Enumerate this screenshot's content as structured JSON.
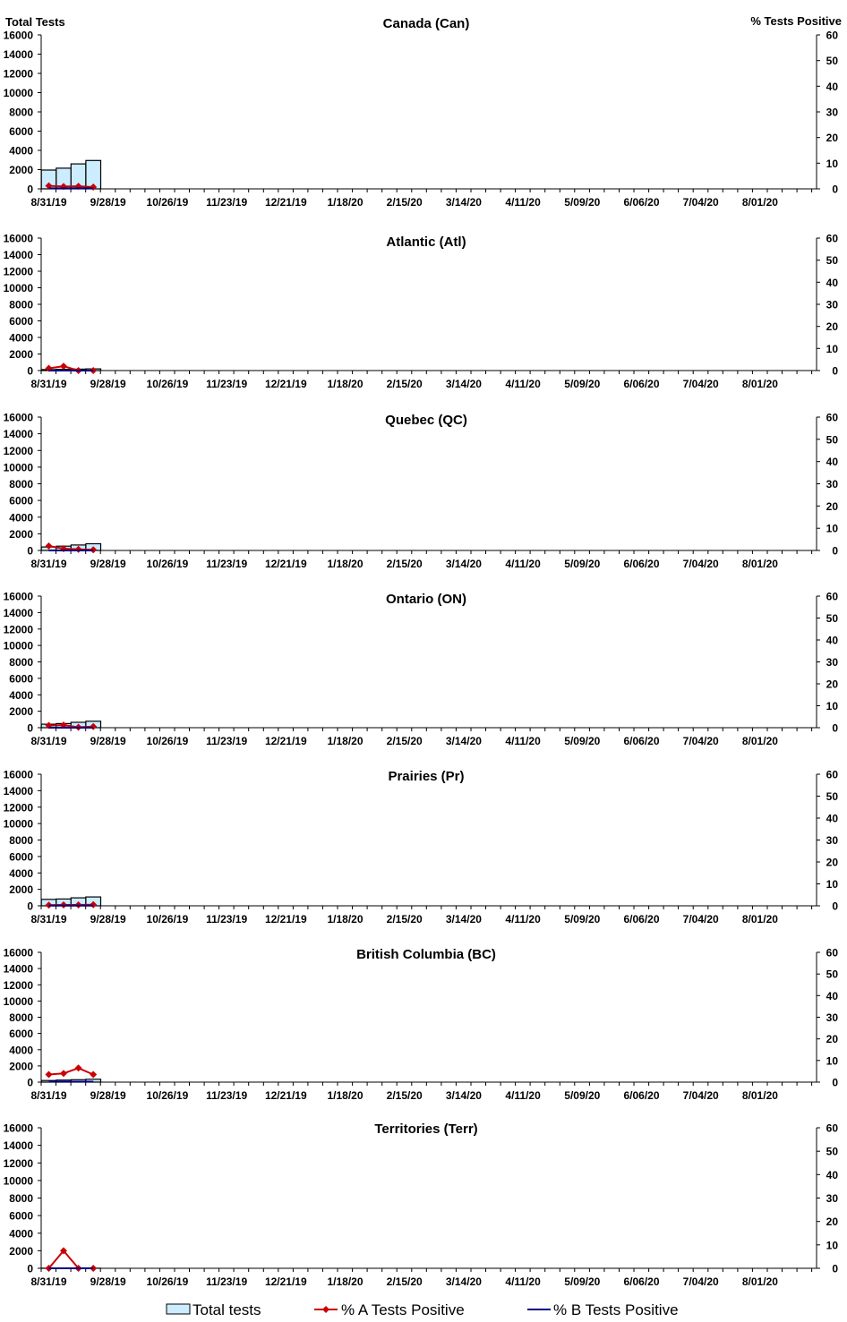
{
  "figure": {
    "left_axis_title": "Total Tests",
    "right_axis_title": "% Tests Positive"
  },
  "legend": {
    "total_tests": "Total tests",
    "pct_a": "% A Tests Positive",
    "pct_b": "% B Tests Positive"
  },
  "colors": {
    "bar_fill": "#CCECFF",
    "bar_stroke": "#000000",
    "series_a": "#CC0000",
    "series_b": "#000080",
    "axis": "#000000"
  },
  "chart_data": [
    {
      "type": "bar",
      "title": "Canada (Can)",
      "x_tick_labels": [
        "8/31/19",
        "9/28/19",
        "10/26/19",
        "11/23/19",
        "12/21/19",
        "1/18/20",
        "2/15/20",
        "3/14/20",
        "4/11/20",
        "5/09/20",
        "6/06/20",
        "7/04/20",
        "8/01/20"
      ],
      "y_left": {
        "min": 0,
        "max": 16000,
        "ticks": [
          0,
          2000,
          4000,
          6000,
          8000,
          10000,
          12000,
          14000,
          16000
        ]
      },
      "y_right": {
        "min": 0,
        "max": 60,
        "ticks": [
          0,
          10,
          20,
          30,
          40,
          50,
          60
        ]
      },
      "weeks": [
        "8/31/19",
        "9/07/19",
        "9/14/19",
        "9/21/19"
      ],
      "total_tests": [
        1950,
        2150,
        2600,
        2950
      ],
      "series": [
        {
          "name": "% A Tests Positive",
          "values": [
            1.2,
            0.9,
            1.0,
            0.7
          ]
        },
        {
          "name": "% B Tests Positive",
          "values": [
            0.2,
            0.2,
            0.2,
            0.2
          ]
        }
      ]
    },
    {
      "type": "bar",
      "title": "Atlantic  (Atl)",
      "x_tick_labels": [
        "8/31/19",
        "9/28/19",
        "10/26/19",
        "11/23/19",
        "12/21/19",
        "1/18/20",
        "2/15/20",
        "3/14/20",
        "4/11/20",
        "5/09/20",
        "6/06/20",
        "7/04/20",
        "8/01/20"
      ],
      "y_left": {
        "min": 0,
        "max": 16000,
        "ticks": [
          0,
          2000,
          4000,
          6000,
          8000,
          10000,
          12000,
          14000,
          16000
        ]
      },
      "y_right": {
        "min": 0,
        "max": 60,
        "ticks": [
          0,
          10,
          20,
          30,
          40,
          50,
          60
        ]
      },
      "weeks": [
        "8/31/19",
        "9/07/19",
        "9/14/19",
        "9/21/19"
      ],
      "total_tests": [
        120,
        150,
        170,
        200
      ],
      "series": [
        {
          "name": "% A Tests Positive",
          "values": [
            1.0,
            2.0,
            0.0,
            0.0
          ]
        },
        {
          "name": "% B Tests Positive",
          "values": [
            0.0,
            0.0,
            0.0,
            0.0
          ]
        }
      ]
    },
    {
      "type": "bar",
      "title": "Quebec (QC)",
      "x_tick_labels": [
        "8/31/19",
        "9/28/19",
        "10/26/19",
        "11/23/19",
        "12/21/19",
        "1/18/20",
        "2/15/20",
        "3/14/20",
        "4/11/20",
        "5/09/20",
        "6/06/20",
        "7/04/20",
        "8/01/20"
      ],
      "y_left": {
        "min": 0,
        "max": 16000,
        "ticks": [
          0,
          2000,
          4000,
          6000,
          8000,
          10000,
          12000,
          14000,
          16000
        ]
      },
      "y_right": {
        "min": 0,
        "max": 60,
        "ticks": [
          0,
          10,
          20,
          30,
          40,
          50,
          60
        ]
      },
      "weeks": [
        "8/31/19",
        "9/07/19",
        "9/14/19",
        "9/21/19"
      ],
      "total_tests": [
        420,
        520,
        650,
        800
      ],
      "series": [
        {
          "name": "% A Tests Positive",
          "values": [
            2.0,
            0.8,
            0.5,
            0.3
          ]
        },
        {
          "name": "% B Tests Positive",
          "values": [
            0.0,
            0.0,
            0.0,
            0.0
          ]
        }
      ]
    },
    {
      "type": "bar",
      "title": "Ontario (ON)",
      "x_tick_labels": [
        "8/31/19",
        "9/28/19",
        "10/26/19",
        "11/23/19",
        "12/21/19",
        "1/18/20",
        "2/15/20",
        "3/14/20",
        "4/11/20",
        "5/09/20",
        "6/06/20",
        "7/04/20",
        "8/01/20"
      ],
      "y_left": {
        "min": 0,
        "max": 16000,
        "ticks": [
          0,
          2000,
          4000,
          6000,
          8000,
          10000,
          12000,
          14000,
          16000
        ]
      },
      "y_right": {
        "min": 0,
        "max": 60,
        "ticks": [
          0,
          10,
          20,
          30,
          40,
          50,
          60
        ]
      },
      "weeks": [
        "8/31/19",
        "9/07/19",
        "9/14/19",
        "9/21/19"
      ],
      "total_tests": [
        420,
        500,
        650,
        780
      ],
      "series": [
        {
          "name": "% A Tests Positive",
          "values": [
            1.0,
            1.2,
            0.2,
            0.5
          ]
        },
        {
          "name": "% B Tests Positive",
          "values": [
            0.0,
            0.0,
            0.0,
            0.0
          ]
        }
      ]
    },
    {
      "type": "bar",
      "title": "Prairies (Pr)",
      "x_tick_labels": [
        "8/31/19",
        "9/28/19",
        "10/26/19",
        "11/23/19",
        "12/21/19",
        "1/18/20",
        "2/15/20",
        "3/14/20",
        "4/11/20",
        "5/09/20",
        "6/06/20",
        "7/04/20",
        "8/01/20"
      ],
      "y_left": {
        "min": 0,
        "max": 16000,
        "ticks": [
          0,
          2000,
          4000,
          6000,
          8000,
          10000,
          12000,
          14000,
          16000
        ]
      },
      "y_right": {
        "min": 0,
        "max": 60,
        "ticks": [
          0,
          10,
          20,
          30,
          40,
          50,
          60
        ]
      },
      "weeks": [
        "8/31/19",
        "9/07/19",
        "9/14/19",
        "9/21/19"
      ],
      "total_tests": [
        780,
        830,
        970,
        1080
      ],
      "series": [
        {
          "name": "% A Tests Positive",
          "values": [
            0.3,
            0.4,
            0.4,
            0.5
          ]
        },
        {
          "name": "% B Tests Positive",
          "values": [
            0.1,
            0.1,
            0.1,
            0.1
          ]
        }
      ]
    },
    {
      "type": "bar",
      "title": "British Columbia (BC)",
      "x_tick_labels": [
        "8/31/19",
        "9/28/19",
        "10/26/19",
        "11/23/19",
        "12/21/19",
        "1/18/20",
        "2/15/20",
        "3/14/20",
        "4/11/20",
        "5/09/20",
        "6/06/20",
        "7/04/20",
        "8/01/20"
      ],
      "y_left": {
        "min": 0,
        "max": 16000,
        "ticks": [
          0,
          2000,
          4000,
          6000,
          8000,
          10000,
          12000,
          14000,
          16000
        ]
      },
      "y_right": {
        "min": 0,
        "max": 60,
        "ticks": [
          0,
          10,
          20,
          30,
          40,
          50,
          60
        ]
      },
      "weeks": [
        "8/31/19",
        "9/07/19",
        "9/14/19",
        "9/21/19"
      ],
      "total_tests": [
        200,
        250,
        300,
        350
      ],
      "series": [
        {
          "name": "% A Tests Positive",
          "values": [
            3.5,
            4.0,
            6.5,
            3.5
          ]
        },
        {
          "name": "% B Tests Positive",
          "values": [
            0.2,
            0.2,
            0.2,
            0.2
          ]
        }
      ]
    },
    {
      "type": "bar",
      "title": "Territories (Terr)",
      "x_tick_labels": [
        "8/31/19",
        "9/28/19",
        "10/26/19",
        "11/23/19",
        "12/21/19",
        "1/18/20",
        "2/15/20",
        "3/14/20",
        "4/11/20",
        "5/09/20",
        "6/06/20",
        "7/04/20",
        "8/01/20"
      ],
      "y_left": {
        "min": 0,
        "max": 16000,
        "ticks": [
          0,
          2000,
          4000,
          6000,
          8000,
          10000,
          12000,
          14000,
          16000
        ]
      },
      "y_right": {
        "min": 0,
        "max": 60,
        "ticks": [
          0,
          10,
          20,
          30,
          40,
          50,
          60
        ]
      },
      "weeks": [
        "8/31/19",
        "9/07/19",
        "9/14/19",
        "9/21/19"
      ],
      "total_tests": [
        10,
        15,
        12,
        10
      ],
      "series": [
        {
          "name": "% A Tests Positive",
          "values": [
            0.0,
            7.5,
            0.0,
            0.0
          ]
        },
        {
          "name": "% B Tests Positive",
          "values": [
            0.0,
            0.0,
            0.0,
            0.0
          ]
        }
      ]
    }
  ]
}
